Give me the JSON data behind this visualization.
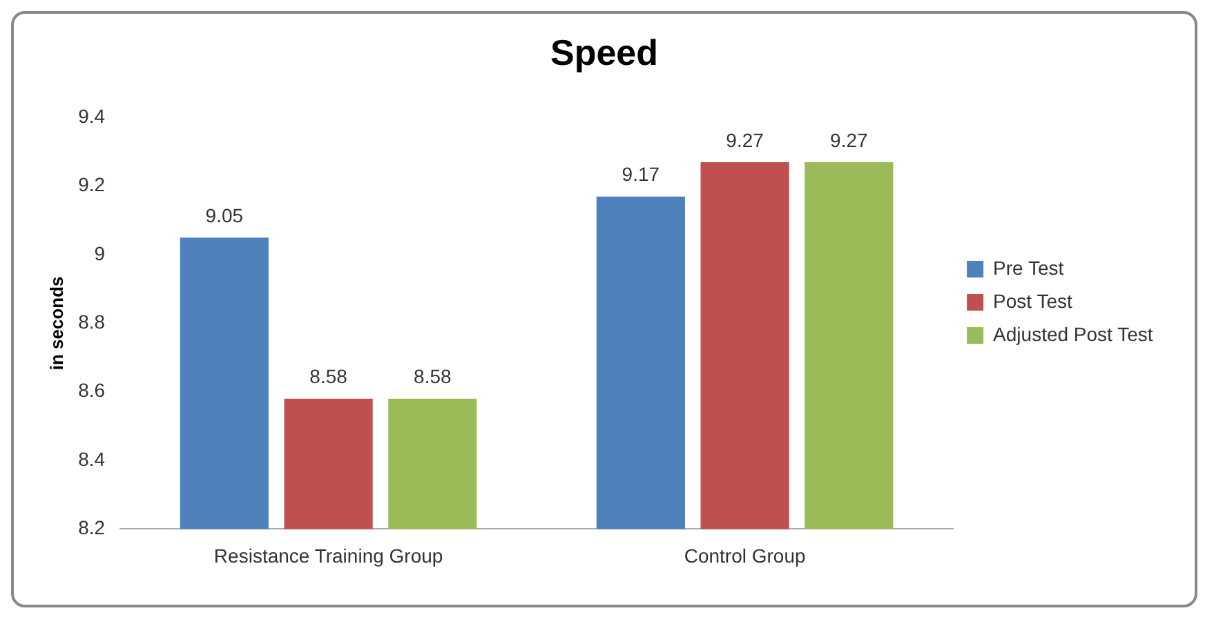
{
  "chart_data": {
    "type": "bar",
    "title": "Speed",
    "ylabel": "in seconds",
    "categories": [
      "Resistance Training Group",
      "Control Group"
    ],
    "series": [
      {
        "name": "Pre Test",
        "color": "#4f81bd",
        "values": [
          9.05,
          9.17
        ]
      },
      {
        "name": "Post Test",
        "color": "#c0504d",
        "values": [
          8.58,
          9.27
        ]
      },
      {
        "name": "Adjusted Post Test",
        "color": "#9bbb59",
        "values": [
          8.58,
          9.27
        ]
      }
    ],
    "ylim": [
      8.2,
      9.4
    ],
    "yticks": [
      8.2,
      8.4,
      8.6,
      8.8,
      9,
      9.2,
      9.4
    ],
    "grid": false,
    "legend": "right",
    "data_labels": true
  }
}
